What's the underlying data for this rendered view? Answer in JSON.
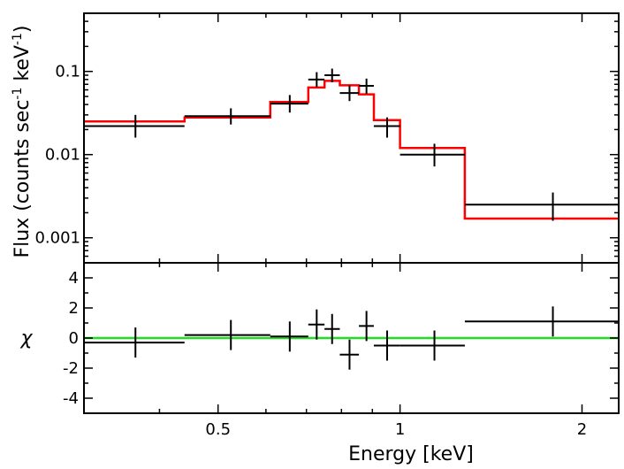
{
  "chart_data": {
    "type": "step",
    "x_scale": "log",
    "xlabel": "Energy [keV]",
    "xlim": [
      0.3,
      2.3
    ],
    "x_ticks": [
      {
        "value": 0.5,
        "label": "0.5"
      },
      {
        "value": 1,
        "label": "1"
      },
      {
        "value": 2,
        "label": "2"
      }
    ],
    "top_panel": {
      "ylabel_main": "Flux (counts sec",
      "ylabel_sup1": "-1",
      "ylabel_mid": " keV",
      "ylabel_sup2": "-1",
      "ylabel_end": ")",
      "y_scale": "log",
      "ylim": [
        0.0005,
        0.5
      ],
      "y_ticks": [
        {
          "value": 0.1,
          "label": "0.1"
        },
        {
          "value": 0.01,
          "label": "0.01"
        },
        {
          "value": 0.001,
          "label": "0.001"
        }
      ],
      "data": {
        "name": "Data",
        "color": "#000000",
        "points": [
          {
            "xlo": 0.3,
            "xhi": 0.44,
            "x": 0.365,
            "y": 0.022,
            "ylo": 0.016,
            "yhi": 0.03
          },
          {
            "xlo": 0.44,
            "xhi": 0.61,
            "x": 0.525,
            "y": 0.029,
            "ylo": 0.023,
            "yhi": 0.036
          },
          {
            "xlo": 0.61,
            "xhi": 0.705,
            "x": 0.657,
            "y": 0.041,
            "ylo": 0.032,
            "yhi": 0.052
          },
          {
            "xlo": 0.705,
            "xhi": 0.75,
            "x": 0.728,
            "y": 0.08,
            "ylo": 0.065,
            "yhi": 0.098
          },
          {
            "xlo": 0.75,
            "xhi": 0.795,
            "x": 0.772,
            "y": 0.09,
            "ylo": 0.074,
            "yhi": 0.108
          },
          {
            "xlo": 0.795,
            "xhi": 0.855,
            "x": 0.825,
            "y": 0.055,
            "ylo": 0.044,
            "yhi": 0.068
          },
          {
            "xlo": 0.855,
            "xhi": 0.905,
            "x": 0.88,
            "y": 0.067,
            "ylo": 0.054,
            "yhi": 0.082
          },
          {
            "xlo": 0.905,
            "xhi": 1.0,
            "x": 0.952,
            "y": 0.022,
            "ylo": 0.016,
            "yhi": 0.028
          },
          {
            "xlo": 1.0,
            "xhi": 1.28,
            "x": 1.14,
            "y": 0.01,
            "ylo": 0.0072,
            "yhi": 0.0135
          },
          {
            "xlo": 1.28,
            "xhi": 2.3,
            "x": 1.79,
            "y": 0.0025,
            "ylo": 0.0016,
            "yhi": 0.0035
          }
        ]
      },
      "model": {
        "name": "Model",
        "color": "#ff0000",
        "bins": [
          {
            "xlo": 0.3,
            "xhi": 0.44,
            "y": 0.025
          },
          {
            "xlo": 0.44,
            "xhi": 0.61,
            "y": 0.028
          },
          {
            "xlo": 0.61,
            "xhi": 0.705,
            "y": 0.043
          },
          {
            "xlo": 0.705,
            "xhi": 0.75,
            "y": 0.064
          },
          {
            "xlo": 0.75,
            "xhi": 0.795,
            "y": 0.077
          },
          {
            "xlo": 0.795,
            "xhi": 0.855,
            "y": 0.068
          },
          {
            "xlo": 0.855,
            "xhi": 0.905,
            "y": 0.053
          },
          {
            "xlo": 0.905,
            "xhi": 1.0,
            "y": 0.026
          },
          {
            "xlo": 1.0,
            "xhi": 1.28,
            "y": 0.012
          },
          {
            "xlo": 1.28,
            "xhi": 2.3,
            "y": 0.0017
          }
        ]
      }
    },
    "bottom_panel": {
      "ylabel": "χ",
      "ylim": [
        -5,
        5
      ],
      "y_ticks": [
        {
          "value": 4,
          "label": "4"
        },
        {
          "value": 2,
          "label": "2"
        },
        {
          "value": 0,
          "label": "0"
        },
        {
          "value": -2,
          "label": "-2"
        },
        {
          "value": -4,
          "label": "-4"
        }
      ],
      "zero_line_color": "#22dd22",
      "residuals": [
        {
          "xlo": 0.3,
          "xhi": 0.44,
          "x": 0.365,
          "y": -0.3
        },
        {
          "xlo": 0.44,
          "xhi": 0.61,
          "x": 0.525,
          "y": 0.2
        },
        {
          "xlo": 0.61,
          "xhi": 0.705,
          "x": 0.657,
          "y": 0.1
        },
        {
          "xlo": 0.705,
          "xhi": 0.75,
          "x": 0.728,
          "y": 0.9
        },
        {
          "xlo": 0.75,
          "xhi": 0.795,
          "x": 0.772,
          "y": 0.6
        },
        {
          "xlo": 0.795,
          "xhi": 0.855,
          "x": 0.825,
          "y": -1.1
        },
        {
          "xlo": 0.855,
          "xhi": 0.905,
          "x": 0.88,
          "y": 0.8
        },
        {
          "xlo": 0.905,
          "xhi": 1.0,
          "x": 0.952,
          "y": -0.5
        },
        {
          "xlo": 1.0,
          "xhi": 1.28,
          "x": 1.14,
          "y": -0.5
        },
        {
          "xlo": 1.28,
          "xhi": 2.3,
          "x": 1.79,
          "y": 1.1
        }
      ]
    }
  }
}
